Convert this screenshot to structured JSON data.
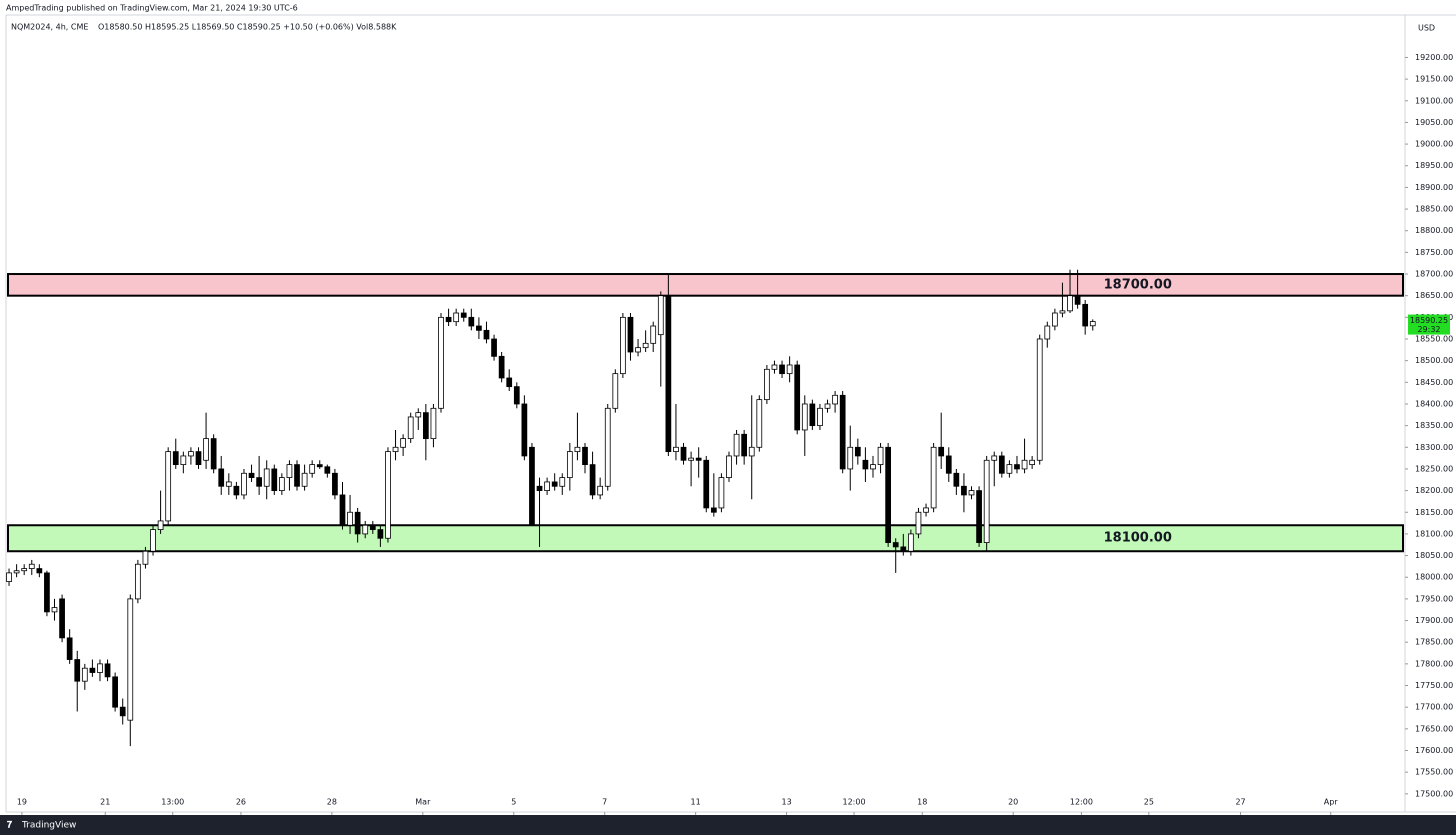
{
  "header": {
    "publisher": "AmpedTrading published on TradingView.com, Mar 21, 2024 19:30 UTC-6",
    "brand": "TradingView"
  },
  "chart_data": {
    "type": "candlestick",
    "symbol": "NQM2024, 4h, CME",
    "ohlc_summary": "O18580.50 H18595.25 L18569.50 C18590.25 +10.50 (+0.06%) Vol8.588K",
    "currency": "USD",
    "last_price": 18590.25,
    "countdown": "29:32",
    "last_price_color": "#22dd22",
    "up_color": "#ffffff",
    "down_color": "#000000",
    "edge_color": "#000000",
    "open": [
      17990,
      18010,
      18015,
      18020,
      18020,
      18010,
      17920,
      17950,
      17860,
      17810,
      17760,
      17790,
      17780,
      17800,
      17770,
      17700,
      17670,
      17950,
      18030,
      18060,
      18110,
      18130,
      18290,
      18260,
      18280,
      18290,
      18270,
      18320,
      18250,
      18210,
      18210,
      18190,
      18240,
      18230,
      18210,
      18250,
      18200,
      18230,
      18260,
      18210,
      18240,
      18260,
      18255,
      18240,
      18190,
      18120,
      18150,
      18100,
      18120,
      18110,
      18090,
      18290,
      18300,
      18320,
      18370,
      18380,
      18320,
      18390,
      18600,
      18590,
      18610,
      18600,
      18580,
      18570,
      18550,
      18510,
      18460,
      18440,
      18400,
      18300,
      18210,
      18200,
      18220,
      18210,
      18230,
      18290,
      18300,
      18260,
      18190,
      18210,
      18390,
      18470,
      18600,
      18520,
      18530,
      18540,
      18560,
      18650,
      18290,
      18300,
      18270,
      18275,
      18270,
      18160,
      18160,
      18230,
      18280,
      18330,
      18280,
      18300,
      18410,
      18480,
      18490,
      18470,
      18490,
      18340,
      18400,
      18350,
      18390,
      18400,
      18420,
      18250,
      18300,
      18270,
      18250,
      18260,
      18300,
      18080,
      18070,
      18060,
      18100,
      18150,
      18160,
      18300,
      18280,
      18240,
      18210,
      18190,
      18200,
      18080,
      18270,
      18280,
      18240,
      18260,
      18250,
      18260,
      18270,
      18550,
      18580,
      18610,
      18615,
      18650,
      18630,
      18580.5
    ],
    "high": [
      18020,
      18030,
      18030,
      18040,
      18030,
      18015,
      17950,
      17960,
      17880,
      17830,
      17800,
      17810,
      17810,
      17810,
      17780,
      17720,
      17960,
      18040,
      18070,
      18120,
      18200,
      18300,
      18320,
      18290,
      18300,
      18300,
      18380,
      18330,
      18280,
      18240,
      18220,
      18250,
      18260,
      18280,
      18270,
      18260,
      18240,
      18270,
      18270,
      18260,
      18270,
      18270,
      18260,
      18250,
      18220,
      18190,
      18160,
      18130,
      18130,
      18120,
      18300,
      18340,
      18330,
      18380,
      18390,
      18400,
      18400,
      18610,
      18620,
      18620,
      18620,
      18620,
      18600,
      18590,
      18560,
      18520,
      18480,
      18450,
      18420,
      18310,
      18230,
      18230,
      18240,
      18240,
      18310,
      18380,
      18310,
      18290,
      18230,
      18400,
      18480,
      18610,
      18610,
      18550,
      18570,
      18590,
      18660,
      18700,
      18400,
      18310,
      18290,
      18300,
      18280,
      18240,
      18240,
      18290,
      18340,
      18340,
      18420,
      18420,
      18490,
      18500,
      18500,
      18510,
      18500,
      18420,
      18410,
      18400,
      18410,
      18430,
      18430,
      18350,
      18320,
      18300,
      18280,
      18310,
      18310,
      18090,
      18100,
      18110,
      18160,
      18170,
      18310,
      18380,
      18300,
      18250,
      18240,
      18210,
      18210,
      18280,
      18290,
      18290,
      18270,
      18280,
      18320,
      18280,
      18560,
      18590,
      18620,
      18680,
      18710,
      18710,
      18640,
      18595.25
    ],
    "low": [
      17980,
      18000,
      18005,
      18005,
      18000,
      17910,
      17900,
      17850,
      17800,
      17690,
      17740,
      17770,
      17760,
      17760,
      17690,
      17660,
      17610,
      17940,
      18020,
      18050,
      18100,
      18120,
      18250,
      18240,
      18260,
      18250,
      18250,
      18240,
      18190,
      18190,
      18180,
      18180,
      18220,
      18190,
      18180,
      18190,
      18190,
      18200,
      18200,
      18200,
      18230,
      18250,
      18230,
      18180,
      18110,
      18100,
      18080,
      18090,
      18100,
      18070,
      18080,
      18270,
      18280,
      18310,
      18340,
      18270,
      18300,
      18380,
      18580,
      18580,
      18590,
      18570,
      18550,
      18540,
      18500,
      18450,
      18430,
      18390,
      18270,
      18120,
      18070,
      18190,
      18200,
      18190,
      18200,
      18270,
      18240,
      18180,
      18180,
      18200,
      18380,
      18460,
      18500,
      18510,
      18520,
      18520,
      18440,
      18280,
      18270,
      18260,
      18210,
      18230,
      18150,
      18140,
      18150,
      18220,
      18260,
      18260,
      18180,
      18290,
      18400,
      18470,
      18460,
      18450,
      18330,
      18280,
      18340,
      18340,
      18380,
      18380,
      18240,
      18200,
      18260,
      18220,
      18230,
      18240,
      18070,
      18010,
      18050,
      18050,
      18090,
      18140,
      18150,
      18250,
      18220,
      18190,
      18150,
      18180,
      18070,
      18060,
      18210,
      18230,
      18230,
      18240,
      18240,
      18250,
      18260,
      18530,
      18570,
      18600,
      18610,
      18620,
      18560,
      18569.5
    ],
    "close": [
      18010,
      18015,
      18020,
      18030,
      18010,
      17920,
      17930,
      17860,
      17810,
      17760,
      17790,
      17780,
      17800,
      17770,
      17700,
      17680,
      17950,
      18030,
      18060,
      18110,
      18130,
      18290,
      18260,
      18280,
      18290,
      18260,
      18320,
      18250,
      18210,
      18220,
      18190,
      18240,
      18230,
      18210,
      18250,
      18200,
      18230,
      18260,
      18210,
      18240,
      18260,
      18255,
      18240,
      18190,
      18120,
      18150,
      18100,
      18120,
      18110,
      18090,
      18290,
      18300,
      18320,
      18370,
      18380,
      18320,
      18390,
      18600,
      18590,
      18610,
      18600,
      18580,
      18570,
      18550,
      18510,
      18460,
      18440,
      18400,
      18280,
      18120,
      18200,
      18220,
      18210,
      18230,
      18290,
      18300,
      18260,
      18190,
      18210,
      18390,
      18470,
      18600,
      18520,
      18530,
      18540,
      18580,
      18650,
      18290,
      18300,
      18270,
      18275,
      18270,
      18160,
      18150,
      18230,
      18280,
      18330,
      18280,
      18300,
      18410,
      18480,
      18490,
      18470,
      18490,
      18340,
      18400,
      18350,
      18390,
      18400,
      18420,
      18250,
      18300,
      18280,
      18250,
      18260,
      18300,
      18080,
      18070,
      18060,
      18100,
      18150,
      18160,
      18300,
      18280,
      18240,
      18210,
      18190,
      18200,
      18080,
      18270,
      18280,
      18240,
      18260,
      18250,
      18270,
      18270,
      18550,
      18580,
      18610,
      18615,
      18650,
      18630,
      18580,
      18590.25
    ],
    "zones": [
      {
        "low": 18650,
        "high": 18700,
        "label": "18700.00",
        "color": "#f9c5cc"
      },
      {
        "low": 18060,
        "high": 18120,
        "label": "18100.00",
        "color": "#c2f9b9"
      }
    ],
    "ylim": [
      17458,
      19298
    ],
    "yticks": [
      {
        "value": 17500,
        "label": "17500.00"
      },
      {
        "value": 17550,
        "label": "17550.00"
      },
      {
        "value": 17600,
        "label": "17600.00"
      },
      {
        "value": 17650,
        "label": "17650.00"
      },
      {
        "value": 17700,
        "label": "17700.00"
      },
      {
        "value": 17750,
        "label": "17750.00"
      },
      {
        "value": 17800,
        "label": "17800.00"
      },
      {
        "value": 17850,
        "label": "17850.00"
      },
      {
        "value": 17900,
        "label": "17900.00"
      },
      {
        "value": 17950,
        "label": "17950.00"
      },
      {
        "value": 18000,
        "label": "18000.00"
      },
      {
        "value": 18050,
        "label": "18050.00"
      },
      {
        "value": 18100,
        "label": "18100.00"
      },
      {
        "value": 18150,
        "label": "18150.00"
      },
      {
        "value": 18200,
        "label": "18200.00"
      },
      {
        "value": 18250,
        "label": "18250.00"
      },
      {
        "value": 18300,
        "label": "18300.00"
      },
      {
        "value": 18350,
        "label": "18350.00"
      },
      {
        "value": 18400,
        "label": "18400.00"
      },
      {
        "value": 18450,
        "label": "18450.00"
      },
      {
        "value": 18500,
        "label": "18500.00"
      },
      {
        "value": 18550,
        "label": "18550.00"
      },
      {
        "value": 18600,
        "label": "18600.00"
      },
      {
        "value": 18650,
        "label": "18650.00"
      },
      {
        "value": 18700,
        "label": "18700.00"
      },
      {
        "value": 18750,
        "label": "18750.00"
      },
      {
        "value": 18800,
        "label": "18800.00"
      },
      {
        "value": 18850,
        "label": "18850.00"
      },
      {
        "value": 18900,
        "label": "18900.00"
      },
      {
        "value": 18950,
        "label": "18950.00"
      },
      {
        "value": 19000,
        "label": "19000.00"
      },
      {
        "value": 19050,
        "label": "19050.00"
      },
      {
        "value": 19100,
        "label": "19100.00"
      },
      {
        "value": 19150,
        "label": "19150.00"
      },
      {
        "value": 19200,
        "label": "19200.00"
      }
    ],
    "xlim": [
      -0.4,
      184.2
    ],
    "xticks": [
      {
        "value": 1.7,
        "label": "19"
      },
      {
        "value": 12.7,
        "label": "21"
      },
      {
        "value": 21.6,
        "label": "13:00"
      },
      {
        "value": 30.6,
        "label": "26"
      },
      {
        "value": 42.6,
        "label": "28"
      },
      {
        "value": 54.6,
        "label": "Mar"
      },
      {
        "value": 66.6,
        "label": "5"
      },
      {
        "value": 78.6,
        "label": "7"
      },
      {
        "value": 90.6,
        "label": "11"
      },
      {
        "value": 102.6,
        "label": "13"
      },
      {
        "value": 111.5,
        "label": "12:00"
      },
      {
        "value": 120.5,
        "label": "18"
      },
      {
        "value": 132.5,
        "label": "20"
      },
      {
        "value": 141.5,
        "label": "12:00"
      },
      {
        "value": 150.4,
        "label": "25"
      },
      {
        "value": 162.5,
        "label": "27"
      },
      {
        "value": 174.4,
        "label": "Apr"
      }
    ]
  }
}
